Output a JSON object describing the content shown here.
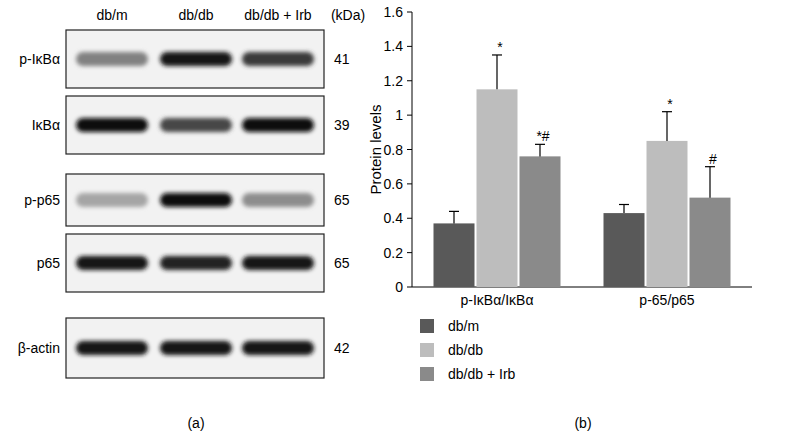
{
  "panel_labels": [
    "(a)",
    "(b)"
  ],
  "blot": {
    "lanes": [
      "db/m",
      "db/db",
      "db/db + Irb"
    ],
    "unit": "(kDa)",
    "rows": [
      {
        "label": "p-IκBα",
        "kda": 41,
        "bands": [
          0.45,
          0.9,
          0.75
        ]
      },
      {
        "label": "IκBα",
        "kda": 39,
        "bands": [
          0.95,
          0.7,
          0.95
        ]
      },
      {
        "label": "p-p65",
        "kda": 65,
        "bands": [
          0.3,
          0.95,
          0.4
        ]
      },
      {
        "label": "p65",
        "kda": 65,
        "bands": [
          0.9,
          0.85,
          0.9
        ]
      },
      {
        "label": "β-actin",
        "kda": 42,
        "bands": [
          0.9,
          0.9,
          0.9
        ]
      }
    ]
  },
  "chart_data": {
    "type": "bar",
    "y_label": "Protein levels",
    "categories": [
      "p-IκBα/IκBα",
      "p-65/p65"
    ],
    "series": [
      {
        "name": "db/m",
        "color": "#595959",
        "values": [
          0.37,
          0.43
        ],
        "errors": [
          0.07,
          0.05
        ],
        "annotations": [
          null,
          null
        ]
      },
      {
        "name": "db/db",
        "color": "#bdbdbd",
        "values": [
          1.15,
          0.85
        ],
        "errors": [
          0.2,
          0.17
        ],
        "annotations": [
          "*",
          "*"
        ]
      },
      {
        "name": "db/db + Irb",
        "color": "#8a8a8a",
        "values": [
          0.76,
          0.52
        ],
        "errors": [
          0.07,
          0.18
        ],
        "annotations": [
          "*#",
          "#"
        ]
      }
    ],
    "ylim": [
      0,
      1.6
    ],
    "yticks": [
      0,
      0.2,
      0.4,
      0.6,
      0.8,
      1,
      1.2,
      1.4,
      1.6
    ],
    "legend": "bottom-left",
    "grid": false
  }
}
